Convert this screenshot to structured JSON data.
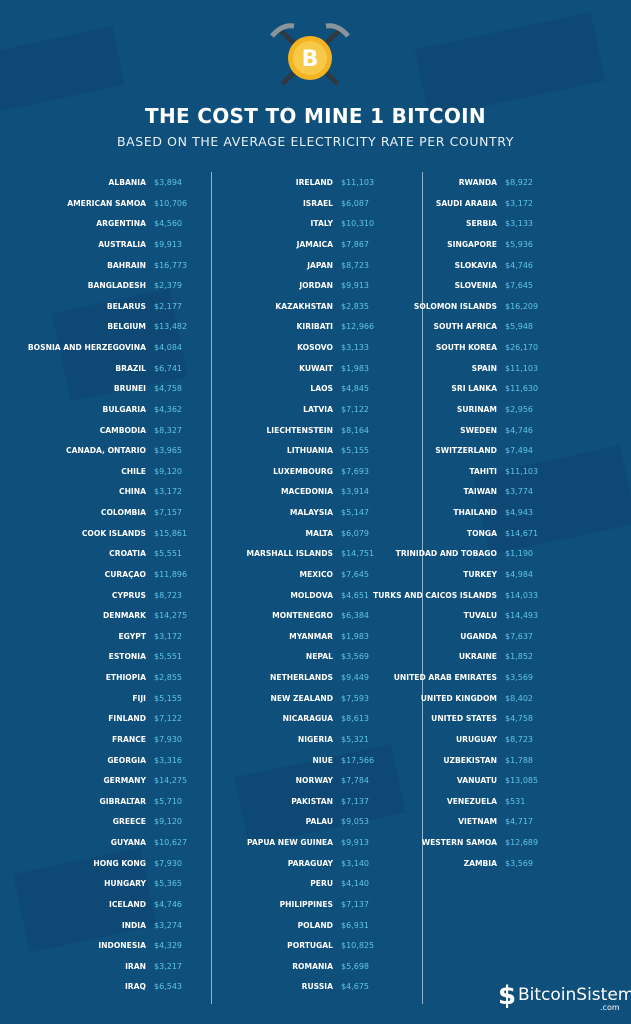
{
  "header": {
    "title": "THE COST TO MINE 1 BITCOIN",
    "subtitle": "BASED ON THE AVERAGE ELECTRICITY RATE PER COUNTRY",
    "logo_icon": "bitcoin-pickaxe-icon"
  },
  "colors": {
    "background": "#0f4f7b",
    "value": "#5fc6e6",
    "text": "#ffffff"
  },
  "columns": [
    [
      [
        "ALBANIA",
        "$3,894"
      ],
      [
        "AMERICAN SAMOA",
        "$10,706"
      ],
      [
        "ARGENTINA",
        "$4,560"
      ],
      [
        "AUSTRALIA",
        "$9,913"
      ],
      [
        "BAHRAIN",
        "$16,773"
      ],
      [
        "BANGLADESH",
        "$2,379"
      ],
      [
        "BELARUS",
        "$2,177"
      ],
      [
        "BELGIUM",
        "$13,482"
      ],
      [
        "BOSNIA AND HERZEGOVINA",
        "$4,084"
      ],
      [
        "BRAZIL",
        "$6,741"
      ],
      [
        "BRUNEI",
        "$4,758"
      ],
      [
        "BULGARIA",
        "$4,362"
      ],
      [
        "CAMBODIA",
        "$8,327"
      ],
      [
        "CANADA, ONTARIO",
        "$3,965"
      ],
      [
        "CHILE",
        "$9,120"
      ],
      [
        "CHINA",
        "$3,172"
      ],
      [
        "COLOMBIA",
        "$7,157"
      ],
      [
        "COOK ISLANDS",
        "$15,861"
      ],
      [
        "CROATIA",
        "$5,551"
      ],
      [
        "CURAÇAO",
        "$11,896"
      ],
      [
        "CYPRUS",
        "$8,723"
      ],
      [
        "DENMARK",
        "$14,275"
      ],
      [
        "EGYPT",
        "$3,172"
      ],
      [
        "ESTONIA",
        "$5,551"
      ],
      [
        "ETHIOPIA",
        "$2,855"
      ],
      [
        "FIJI",
        "$5,155"
      ],
      [
        "FINLAND",
        "$7,122"
      ],
      [
        "FRANCE",
        "$7,930"
      ],
      [
        "GEORGIA",
        "$3,316"
      ],
      [
        "GERMANY",
        "$14,275"
      ],
      [
        "GIBRALTAR",
        "$5,710"
      ],
      [
        "GREECE",
        "$9,120"
      ],
      [
        "GUYANA",
        "$10,627"
      ],
      [
        "HONG KONG",
        "$7,930"
      ],
      [
        "HUNGARY",
        "$5,365"
      ],
      [
        "ICELAND",
        "$4,746"
      ],
      [
        "INDIA",
        "$3,274"
      ],
      [
        "INDONESIA",
        "$4,329"
      ],
      [
        "IRAN",
        "$3,217"
      ],
      [
        "IRAQ",
        "$6,543"
      ]
    ],
    [
      [
        "IRELAND",
        "$11,103"
      ],
      [
        "ISRAEL",
        "$6,087"
      ],
      [
        "ITALY",
        "$10,310"
      ],
      [
        "JAMAICA",
        "$7,867"
      ],
      [
        "JAPAN",
        "$8,723"
      ],
      [
        "JORDAN",
        "$9,913"
      ],
      [
        "KAZAKHSTAN",
        "$2,835"
      ],
      [
        "KIRIBATI",
        "$12,966"
      ],
      [
        "KOSOVO",
        "$3,133"
      ],
      [
        "KUWAIT",
        "$1,983"
      ],
      [
        "LAOS",
        "$4,845"
      ],
      [
        "LATVIA",
        "$7,122"
      ],
      [
        "LIECHTENSTEIN",
        "$8,164"
      ],
      [
        "LITHUANIA",
        "$5,155"
      ],
      [
        "LUXEMBOURG",
        "$7,693"
      ],
      [
        "MACEDONIA",
        "$3,914"
      ],
      [
        "MALAYSIA",
        "$5,147"
      ],
      [
        "MALTA",
        "$6,079"
      ],
      [
        "MARSHALL ISLANDS",
        "$14,751"
      ],
      [
        "MEXICO",
        "$7,645"
      ],
      [
        "MOLDOVA",
        "$4,651"
      ],
      [
        "MONTENEGRO",
        "$6,384"
      ],
      [
        "MYANMAR",
        "$1,983"
      ],
      [
        "NEPAL",
        "$3,569"
      ],
      [
        "NETHERLANDS",
        "$9,449"
      ],
      [
        "NEW ZEALAND",
        "$7,593"
      ],
      [
        "NICARAGUA",
        "$8,613"
      ],
      [
        "NIGERIA",
        "$5,321"
      ],
      [
        "NIUE",
        "$17,566"
      ],
      [
        "NORWAY",
        "$7,784"
      ],
      [
        "PAKISTAN",
        "$7,137"
      ],
      [
        "PALAU",
        "$9,053"
      ],
      [
        "PAPUA NEW GUINEA",
        "$9,913"
      ],
      [
        "PARAGUAY",
        "$3,140"
      ],
      [
        "PERU",
        "$4,140"
      ],
      [
        "PHILIPPINES",
        "$7,137"
      ],
      [
        "POLAND",
        "$6,931"
      ],
      [
        "PORTUGAL",
        "$10,825"
      ],
      [
        "ROMANIA",
        "$5,698"
      ],
      [
        "RUSSIA",
        "$4,675"
      ]
    ],
    [
      [
        "RWANDA",
        "$8,922"
      ],
      [
        "SAUDI ARABIA",
        "$3,172"
      ],
      [
        "SERBIA",
        "$3,133"
      ],
      [
        "SINGAPORE",
        "$5,936"
      ],
      [
        "SLOKAVIA",
        "$4,746"
      ],
      [
        "SLOVENIA",
        "$7,645"
      ],
      [
        "SOLOMON ISLANDS",
        "$16,209"
      ],
      [
        "SOUTH AFRICA",
        "$5,948"
      ],
      [
        "SOUTH KOREA",
        "$26,170"
      ],
      [
        "SPAIN",
        "$11,103"
      ],
      [
        "SRI LANKA",
        "$11,630"
      ],
      [
        "SURINAM",
        "$2,956"
      ],
      [
        "SWEDEN",
        "$4,746"
      ],
      [
        "SWITZERLAND",
        "$7,494"
      ],
      [
        "TAHITI",
        "$11,103"
      ],
      [
        "TAIWAN",
        "$3,774"
      ],
      [
        "THAILAND",
        "$4,943"
      ],
      [
        "TONGA",
        "$14,671"
      ],
      [
        "TRINIDAD AND TOBAGO",
        "$1,190"
      ],
      [
        "TURKEY",
        "$4,984"
      ],
      [
        "TURKS AND CAICOS ISLANDS",
        "$14,033"
      ],
      [
        "TUVALU",
        "$14,493"
      ],
      [
        "UGANDA",
        "$7,637"
      ],
      [
        "UKRAINE",
        "$1,852"
      ],
      [
        "UNITED ARAB EMIRATES",
        "$3,569"
      ],
      [
        "UNITED KINGDOM",
        "$8,402"
      ],
      [
        "UNITED STATES",
        "$4,758"
      ],
      [
        "URUGUAY",
        "$8,723"
      ],
      [
        "UZBEKISTAN",
        "$1,788"
      ],
      [
        "VANUATU",
        "$13,085"
      ],
      [
        "VENEZUELA",
        "$531"
      ],
      [
        "VIETNAM",
        "$4,717"
      ],
      [
        "WESTERN SAMOA",
        "$12,689"
      ],
      [
        "ZAMBIA",
        "$3,569"
      ]
    ]
  ],
  "footer": {
    "brand": "BitcoinSistemi",
    "brand_suffix": ".com",
    "brand_icon": "bitcoin-s-icon"
  }
}
